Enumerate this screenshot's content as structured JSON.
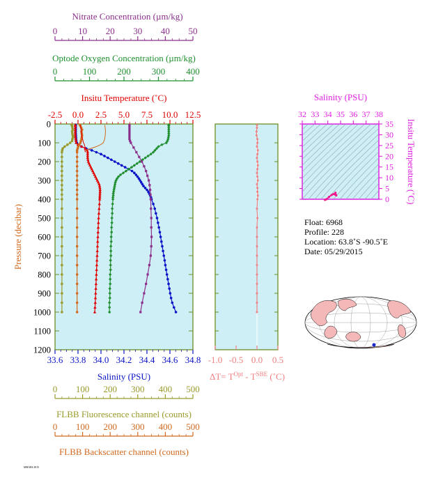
{
  "colors": {
    "panel_bg": "#cfeff7",
    "frame": "#6b8e23",
    "nitrate": "#8b2f8b",
    "oxygen": "#1f8f2f",
    "temperature": "#e00000",
    "salinity": "#0a14c8",
    "fluorescence": "#9a9a2a",
    "backscatter": "#d2691e",
    "delta_t": "#f08080",
    "ts_frame": "#e020e0",
    "ts_curve": "#f0188c"
  },
  "axes": {
    "nitrate_label": "Nitrate Concentration (µm/kg)",
    "oxygen_label": "Optode Oxygen Concentration (µm/kg)",
    "temperature_label": "Insitu Temperature (˚C)",
    "salinity_label": "Salinity (PSU)",
    "pressure_label": "Pressure (decibar)",
    "fluorescence_label": "FLBB Fluorescence channel (counts)",
    "backscatter_label": "FLBB Backscatter channel (counts)",
    "dt_label_prefix": "ΔT= T",
    "dt_label_sup1": "Opt",
    "dt_label_mid": " - T",
    "dt_label_sup2": "SBE",
    "dt_label_suffix": " (˚C)",
    "ts_salinity_label": "Salinity (PSU)",
    "ts_temperature_label": "Insitu Temperature (˚C)"
  },
  "info": {
    "float": "Float:   6968",
    "profile": "Profile:  228",
    "location": "Location:  63.8˚S  -90.5˚E",
    "date": "Date:  05/29/2015"
  },
  "footer_text": "MBARI 2015",
  "chart_data": [
    {
      "type": "line",
      "name": "main-profile",
      "y_axis": {
        "label": "Pressure (decibar)",
        "range": [
          0,
          1200
        ],
        "ticks": [
          0,
          100,
          200,
          300,
          400,
          500,
          600,
          700,
          800,
          900,
          1000,
          1100,
          1200
        ],
        "inverted": true
      },
      "x_axes": [
        {
          "id": "nitrate",
          "label": "Nitrate Concentration (µm/kg)",
          "range": [
            0,
            50
          ],
          "ticks": [
            0,
            10,
            20,
            30,
            40,
            50
          ]
        },
        {
          "id": "oxygen",
          "label": "Optode Oxygen Concentration (µm/kg)",
          "range": [
            0,
            400
          ],
          "ticks": [
            0,
            100,
            200,
            300,
            400
          ]
        },
        {
          "id": "temperature",
          "label": "Insitu Temperature (˚C)",
          "range": [
            -2.5,
            12.5
          ],
          "ticks": [
            -2.5,
            0.0,
            2.5,
            5.0,
            7.5,
            10.0,
            12.5
          ]
        },
        {
          "id": "salinity",
          "label": "Salinity (PSU)",
          "range": [
            33.6,
            34.8
          ],
          "ticks": [
            33.6,
            33.8,
            34.0,
            34.2,
            34.4,
            34.6,
            34.8
          ]
        },
        {
          "id": "fluorescence",
          "label": "FLBB Fluorescence channel (counts)",
          "range": [
            0,
            500
          ],
          "ticks": [
            0,
            100,
            200,
            300,
            400,
            500
          ]
        },
        {
          "id": "backscatter",
          "label": "FLBB Backscatter channel (counts)",
          "range": [
            0,
            500
          ],
          "ticks": [
            0,
            100,
            200,
            300,
            400,
            500
          ]
        }
      ],
      "series": [
        {
          "axis": "salinity",
          "color": "#0a14c8",
          "marker": "circle",
          "pressure": [
            5,
            10,
            20,
            30,
            40,
            50,
            60,
            70,
            80,
            90,
            100,
            110,
            120,
            130,
            140,
            150,
            160,
            170,
            180,
            190,
            200,
            210,
            220,
            230,
            240,
            250,
            260,
            270,
            280,
            290,
            300,
            310,
            320,
            330,
            340,
            350,
            360,
            370,
            380,
            390,
            400,
            425,
            450,
            475,
            500,
            525,
            550,
            575,
            600,
            625,
            650,
            675,
            700,
            725,
            750,
            775,
            800,
            825,
            850,
            875,
            900,
            925,
            950,
            975,
            1000
          ],
          "values": [
            33.78,
            33.78,
            33.78,
            33.78,
            33.78,
            33.78,
            33.781,
            33.782,
            33.783,
            33.785,
            33.79,
            33.805,
            33.83,
            33.87,
            33.92,
            33.96,
            34.0,
            34.03,
            34.06,
            34.09,
            34.12,
            34.15,
            34.18,
            34.21,
            34.24,
            34.27,
            34.29,
            34.305,
            34.318,
            34.33,
            34.34,
            34.35,
            34.36,
            34.37,
            34.385,
            34.4,
            34.412,
            34.42,
            34.428,
            34.435,
            34.44,
            34.455,
            34.468,
            34.478,
            34.488,
            34.496,
            34.504,
            34.512,
            34.519,
            34.526,
            34.533,
            34.54,
            34.547,
            34.554,
            34.56,
            34.567,
            34.574,
            34.581,
            34.588,
            34.595,
            34.602,
            34.61,
            34.62,
            34.635,
            34.652
          ]
        },
        {
          "axis": "temperature",
          "color": "#e00000",
          "marker": "triangle",
          "pressure": [
            5,
            10,
            20,
            30,
            40,
            50,
            60,
            70,
            80,
            90,
            100,
            110,
            120,
            130,
            140,
            150,
            160,
            170,
            180,
            190,
            200,
            210,
            220,
            230,
            240,
            250,
            260,
            270,
            280,
            290,
            300,
            310,
            320,
            330,
            340,
            350,
            360,
            370,
            380,
            390,
            400,
            425,
            450,
            475,
            500,
            525,
            550,
            575,
            600,
            625,
            650,
            675,
            700,
            725,
            750,
            775,
            800,
            825,
            850,
            875,
            900,
            925,
            950,
            975,
            1000
          ],
          "values": [
            -0.3,
            -0.3,
            -0.3,
            -0.3,
            -0.3,
            -0.3,
            -0.3,
            -0.28,
            -0.25,
            -0.22,
            -0.2,
            0.0,
            0.4,
            0.8,
            1.0,
            1.05,
            1.05,
            1.05,
            1.05,
            1.08,
            1.12,
            1.2,
            1.3,
            1.4,
            1.5,
            1.6,
            1.7,
            1.8,
            1.9,
            2.0,
            2.1,
            2.2,
            2.3,
            2.35,
            2.38,
            2.4,
            2.4,
            2.39,
            2.38,
            2.37,
            2.36,
            2.33,
            2.3,
            2.27,
            2.24,
            2.22,
            2.2,
            2.18,
            2.16,
            2.14,
            2.12,
            2.1,
            2.08,
            2.06,
            2.04,
            2.02,
            2.0,
            1.98,
            1.96,
            1.94,
            1.92,
            1.9,
            1.88,
            1.85,
            1.82
          ]
        },
        {
          "axis": "oxygen",
          "color": "#1f8f2f",
          "marker": "diamond",
          "pressure": [
            5,
            10,
            20,
            30,
            40,
            50,
            60,
            70,
            80,
            90,
            100,
            110,
            120,
            130,
            140,
            150,
            160,
            170,
            180,
            190,
            200,
            210,
            220,
            230,
            240,
            250,
            260,
            270,
            280,
            290,
            300,
            310,
            320,
            330,
            340,
            350,
            360,
            370,
            380,
            390,
            400,
            425,
            450,
            475,
            500,
            525,
            550,
            575,
            600,
            625,
            650,
            675,
            700,
            725,
            750,
            775,
            800,
            825,
            850,
            875,
            900,
            925,
            950,
            975,
            1000
          ],
          "values": [
            330,
            330,
            330,
            330,
            330,
            330,
            330,
            329,
            328,
            326,
            323,
            310,
            300,
            295,
            290,
            285,
            278,
            270,
            262,
            254,
            246,
            238,
            230,
            222,
            214,
            206,
            198,
            190,
            184,
            180,
            177,
            175,
            174,
            173,
            172,
            171,
            170,
            169,
            169,
            168,
            168,
            167,
            166,
            166,
            165,
            165,
            164,
            164,
            163,
            163,
            162,
            162,
            162,
            161,
            161,
            161,
            160,
            160,
            160,
            159,
            159,
            159,
            158,
            158,
            158
          ]
        },
        {
          "axis": "nitrate",
          "color": "#8b2f8b",
          "marker": "square",
          "pressure": [
            5,
            10,
            20,
            30,
            40,
            50,
            60,
            70,
            80,
            90,
            100,
            125,
            150,
            175,
            200,
            225,
            250,
            275,
            300,
            325,
            350,
            375,
            400,
            450,
            500,
            550,
            600,
            650,
            700,
            750,
            800,
            850,
            900,
            950,
            1000
          ],
          "values": [
            27,
            27,
            27,
            27,
            27,
            27,
            27,
            27,
            27,
            27.2,
            27.5,
            28.5,
            29.5,
            30.5,
            31.5,
            32.3,
            33.0,
            33.5,
            34.0,
            34.3,
            34.5,
            34.6,
            34.7,
            34.8,
            34.9,
            34.9,
            35.0,
            34.9,
            34.7,
            34.2,
            33.6,
            33.0,
            32.3,
            31.6,
            31.0
          ]
        },
        {
          "axis": "fluorescence",
          "color": "#9a9a2a",
          "marker": "circle",
          "pressure": [
            5,
            10,
            20,
            30,
            40,
            50,
            60,
            70,
            80,
            90,
            100,
            110,
            120,
            130,
            140,
            150,
            175,
            200,
            225,
            250,
            275,
            300,
            325,
            350,
            375,
            400,
            450,
            500,
            550,
            600,
            650,
            700,
            750,
            800,
            850,
            900,
            950,
            1000
          ],
          "values": [
            60,
            62,
            63,
            64,
            62,
            63,
            64,
            65,
            63,
            62,
            55,
            45,
            35,
            28,
            26,
            25,
            25,
            25,
            25,
            25,
            25,
            25,
            25,
            25,
            25,
            25,
            25,
            25,
            25,
            25,
            25,
            25,
            25,
            25,
            25,
            25,
            25,
            25
          ]
        },
        {
          "axis": "backscatter",
          "color": "#d2691e",
          "marker": "circle",
          "pressure": [
            5,
            10,
            20,
            30,
            40,
            50,
            60,
            70,
            80,
            90,
            100,
            110,
            120,
            130,
            140,
            150,
            175,
            200,
            225,
            250,
            275,
            300,
            325,
            350,
            375,
            400,
            450,
            500,
            550,
            600,
            650,
            700,
            750,
            800,
            850,
            900,
            950,
            1000
          ],
          "values": [
            90,
            92,
            95,
            98,
            96,
            97,
            98,
            97,
            96,
            94,
            92,
            88,
            84,
            82,
            80,
            80,
            80,
            80,
            80,
            80,
            80,
            80,
            80,
            80,
            80,
            80,
            80,
            80,
            80,
            80,
            80,
            80,
            80,
            80,
            80,
            80,
            80,
            80
          ]
        },
        {
          "axis": "temperature",
          "color": "#e00000",
          "marker": "none",
          "style": "thin",
          "pressure": [
            5,
            20,
            40,
            60,
            80,
            100,
            110,
            120,
            130,
            140,
            150
          ],
          "values": [
            0.3,
            0.3,
            0.35,
            0.4,
            0.5,
            0.6,
            0.7,
            0.75,
            0.75,
            0.75,
            0.8
          ]
        },
        {
          "axis": "backscatter",
          "color": "#d2691e",
          "marker": "none",
          "style": "thin",
          "pressure": [
            5,
            20,
            40,
            60,
            80,
            100,
            110,
            120,
            130,
            140
          ],
          "values": [
            180,
            182,
            183,
            182,
            180,
            175,
            165,
            150,
            130,
            110
          ]
        }
      ]
    },
    {
      "type": "line",
      "name": "delta-t",
      "x_axis": {
        "range": [
          -1.0,
          0.5
        ],
        "ticks": [
          -1.0,
          -0.5,
          0.0,
          0.5
        ]
      },
      "y_axis": {
        "range": [
          0,
          1200
        ],
        "inverted": true
      },
      "series": [
        {
          "color": "#f08080",
          "pressure": [
            5,
            20,
            40,
            60,
            80,
            100,
            120,
            140,
            160,
            180,
            200,
            220,
            240,
            260,
            280,
            300,
            320,
            340,
            360,
            380,
            400,
            450,
            500,
            550,
            600,
            650,
            700,
            750,
            800,
            850,
            900,
            950,
            1000
          ],
          "values": [
            0.0,
            0.0,
            -0.01,
            -0.01,
            0.01,
            0.01,
            0.0,
            0.02,
            0.01,
            0.0,
            0.01,
            0.02,
            0.01,
            0.0,
            0.01,
            0.02,
            0.0,
            0.01,
            0.01,
            0.02,
            0.01,
            0.0,
            0.01,
            0.0,
            0.0,
            0.0,
            0.0,
            0.0,
            0.0,
            0.0,
            0.0,
            0.0,
            0.0
          ]
        }
      ]
    },
    {
      "type": "line",
      "name": "ts-diagram",
      "x_axis": {
        "label": "Salinity (PSU)",
        "range": [
          32,
          38
        ],
        "ticks": [
          32,
          33,
          34,
          35,
          36,
          37,
          38
        ]
      },
      "y_axis": {
        "label": "Insitu Temperature (˚C)",
        "range": [
          0,
          35
        ],
        "ticks": [
          0,
          5,
          10,
          15,
          20,
          25,
          30,
          35
        ]
      },
      "series": [
        {
          "color": "#f0188c",
          "salinity": [
            33.78,
            33.9,
            34.1,
            34.3,
            34.45,
            34.55,
            34.62,
            34.66,
            34.6
          ],
          "temperature": [
            -0.3,
            0.0,
            1.1,
            2.0,
            2.4,
            2.3,
            2.1,
            1.8,
            3.0
          ]
        }
      ]
    }
  ]
}
